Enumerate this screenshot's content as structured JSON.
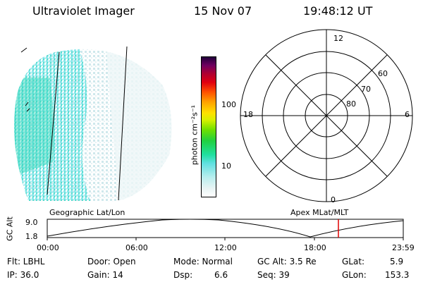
{
  "header": {
    "title": "Ultraviolet Imager",
    "date": "15 Nov 07",
    "time": "19:48:12 UT"
  },
  "colorbar": {
    "unit_label": "photon cm⁻²s⁻¹",
    "ticks": [
      "100",
      "10"
    ]
  },
  "polar": {
    "hour_labels": {
      "top": "12",
      "left": "18",
      "right": "6",
      "bottom": "0"
    },
    "lat_labels": [
      "60",
      "70",
      "80"
    ]
  },
  "timeline": {
    "left_title": "Geographic Lat/Lon",
    "right_title": "Apex MLat/MLT",
    "axis_label": "GC Alt",
    "y_ticks": [
      "9.0",
      "1.8"
    ],
    "x_ticks": [
      "00:00",
      "06:00",
      "12:00",
      "18:00",
      "23:59"
    ],
    "marker_color": "#e00000"
  },
  "info": {
    "flt": "Flt: LBHL",
    "ip": "IP: 36.0",
    "door": "Door: Open",
    "gain": "Gain: 14",
    "mode": "Mode: Normal",
    "dsp_label": "Dsp:",
    "dsp_value": "6.6",
    "gc_alt": "GC Alt: 3.5 Re",
    "seq": "Seq: 39",
    "glat_label": "GLat:",
    "glat_value": "5.9",
    "glon_label": "GLon:",
    "glon_value": "153.3"
  }
}
